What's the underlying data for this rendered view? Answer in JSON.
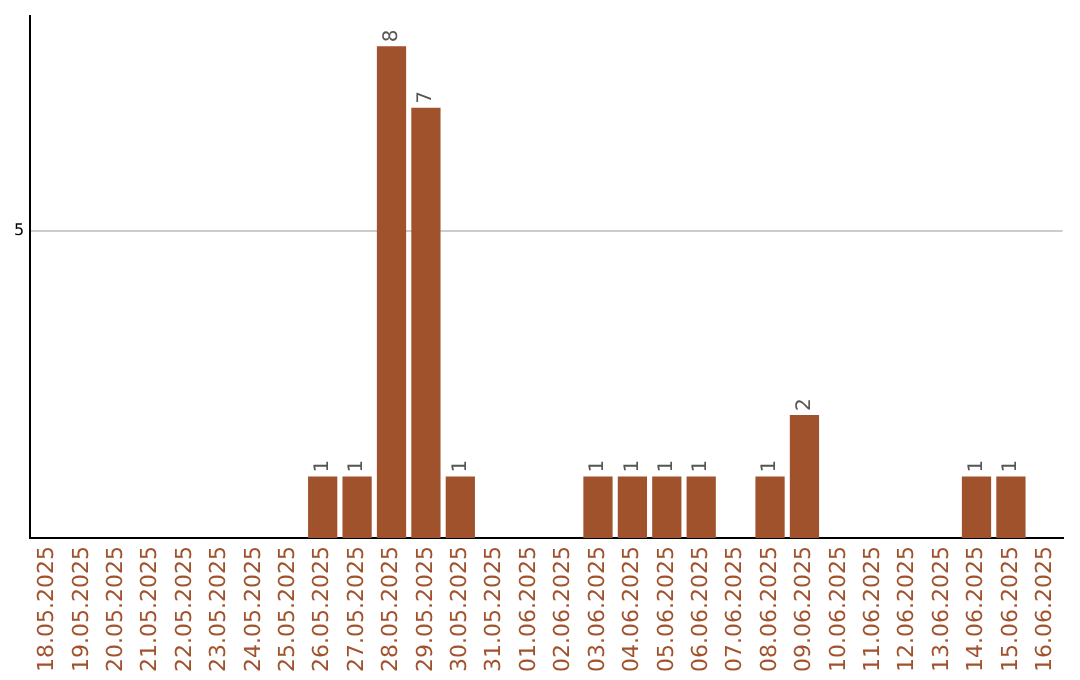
{
  "chart_data": {
    "type": "bar",
    "categories": [
      "18.05.2025",
      "19.05.2025",
      "20.05.2025",
      "21.05.2025",
      "22.05.2025",
      "23.05.2025",
      "24.05.2025",
      "25.05.2025",
      "26.05.2025",
      "27.05.2025",
      "28.05.2025",
      "29.05.2025",
      "30.05.2025",
      "31.05.2025",
      "01.06.2025",
      "02.06.2025",
      "03.06.2025",
      "04.06.2025",
      "05.06.2025",
      "06.06.2025",
      "07.06.2025",
      "08.06.2025",
      "09.06.2025",
      "10.06.2025",
      "11.06.2025",
      "12.06.2025",
      "13.06.2025",
      "14.06.2025",
      "15.06.2025",
      "16.06.2025"
    ],
    "values": [
      0,
      0,
      0,
      0,
      0,
      0,
      0,
      0,
      1,
      1,
      8,
      7,
      1,
      0,
      0,
      0,
      1,
      1,
      1,
      1,
      0,
      1,
      2,
      0,
      0,
      0,
      0,
      1,
      1,
      0
    ],
    "value_labels": [
      null,
      null,
      null,
      null,
      null,
      null,
      null,
      null,
      "1",
      "1",
      "8",
      "7",
      "1",
      null,
      null,
      null,
      "1",
      "1",
      "1",
      "1",
      null,
      "1",
      "2",
      null,
      null,
      null,
      null,
      "1",
      "1",
      null
    ],
    "color": "#a0522d",
    "ylim": [
      0,
      8.5
    ],
    "yticks": [
      5
    ],
    "grid": "y",
    "legend": false
  }
}
